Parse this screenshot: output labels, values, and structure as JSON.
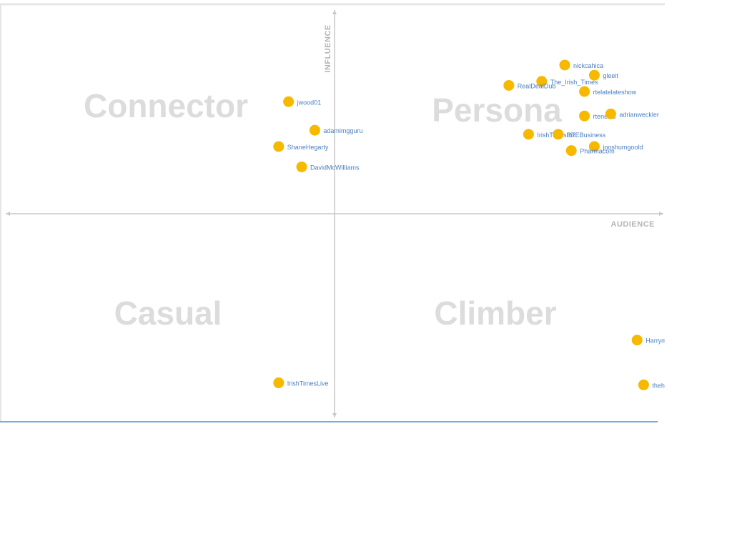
{
  "chart_data": {
    "type": "scatter",
    "quadrants": [
      "Connector",
      "Persona",
      "Casual",
      "Climber"
    ],
    "x_label": "AUDIENCE",
    "y_label": "INFLUENCE",
    "xlim": [
      -1,
      1
    ],
    "ylim": [
      -1,
      1
    ],
    "color": "#f7b900",
    "labels": [
      "jwood01",
      "adamimgguru",
      "ShaneHegarty",
      "DavidMcWilliams",
      "IrishTimesLive",
      "nickcahica",
      "gleeit",
      "The_Irish_Times",
      "RealDealDub",
      "rtelatelateshow",
      "rtenews",
      "adrianweckler",
      "IrishTimesBiz",
      "RTEBusiness",
      "jooshumgoold",
      "Pharmacom",
      "Harrymcgee",
      "theholida"
    ],
    "x": [
      -0.14,
      -0.06,
      -0.17,
      -0.1,
      -0.17,
      0.7,
      0.79,
      0.63,
      0.53,
      0.76,
      0.76,
      0.84,
      0.59,
      0.68,
      0.79,
      0.72,
      0.92,
      0.94
    ],
    "y": [
      0.55,
      0.41,
      0.33,
      0.23,
      -0.83,
      0.73,
      0.68,
      0.65,
      0.63,
      0.6,
      0.48,
      0.49,
      0.39,
      0.39,
      0.33,
      0.31,
      -0.62,
      -0.84
    ]
  }
}
